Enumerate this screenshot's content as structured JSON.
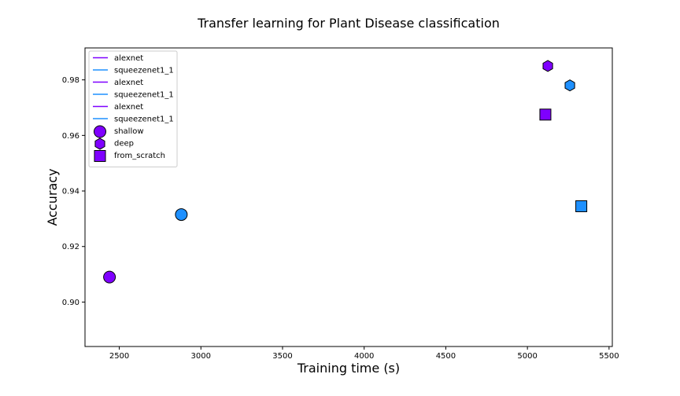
{
  "chart_data": {
    "type": "scatter",
    "title": "Transfer learning for Plant Disease classification",
    "xlabel": "Training time (s)",
    "ylabel": "Accuracy",
    "xlim": [
      2290,
      5520
    ],
    "ylim": [
      0.884,
      0.9915
    ],
    "xticks": [
      2500,
      3000,
      3500,
      4000,
      4500,
      5000,
      5500
    ],
    "yticks": [
      0.9,
      0.92,
      0.94,
      0.96,
      0.98
    ],
    "xtick_labels": [
      "2500",
      "3000",
      "3500",
      "4000",
      "4500",
      "5000",
      "5500"
    ],
    "ytick_labels": [
      "0.90",
      "0.92",
      "0.94",
      "0.96",
      "0.98"
    ],
    "grid": false,
    "legend_position": "upper-left",
    "colors": {
      "alexnet": "#7f00ff",
      "squeezenet1_1": "#1e90ff",
      "marker_edge": "#000000"
    },
    "legend": [
      {
        "label": "alexnet",
        "kind": "line",
        "color": "#7f00ff"
      },
      {
        "label": "squeezenet1_1",
        "kind": "line",
        "color": "#1e90ff"
      },
      {
        "label": "alexnet",
        "kind": "line",
        "color": "#7f00ff"
      },
      {
        "label": "squeezenet1_1",
        "kind": "line",
        "color": "#1e90ff"
      },
      {
        "label": "alexnet",
        "kind": "line",
        "color": "#7f00ff"
      },
      {
        "label": "squeezenet1_1",
        "kind": "line",
        "color": "#1e90ff"
      },
      {
        "label": "shallow",
        "kind": "marker",
        "marker": "circle",
        "color": "#7f00ff"
      },
      {
        "label": "deep",
        "kind": "marker",
        "marker": "hexagon",
        "color": "#7f00ff"
      },
      {
        "label": "from_scratch",
        "kind": "marker",
        "marker": "square",
        "color": "#7f00ff"
      }
    ],
    "points": [
      {
        "model": "alexnet",
        "mode": "shallow",
        "marker": "circle",
        "x": 2440,
        "y": 0.909
      },
      {
        "model": "squeezenet1_1",
        "mode": "shallow",
        "marker": "circle",
        "x": 2880,
        "y": 0.9315
      },
      {
        "model": "alexnet",
        "mode": "deep",
        "marker": "hexagon",
        "x": 5125,
        "y": 0.985
      },
      {
        "model": "squeezenet1_1",
        "mode": "deep",
        "marker": "hexagon",
        "x": 5260,
        "y": 0.978
      },
      {
        "model": "alexnet",
        "mode": "from_scratch",
        "marker": "square",
        "x": 5110,
        "y": 0.9675
      },
      {
        "model": "squeezenet1_1",
        "mode": "from_scratch",
        "marker": "square",
        "x": 5330,
        "y": 0.9345
      }
    ]
  }
}
